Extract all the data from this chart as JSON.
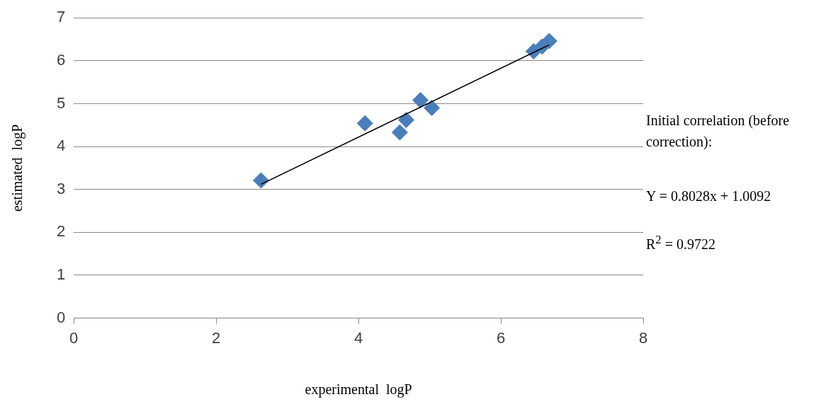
{
  "chart_data": {
    "type": "scatter",
    "xlabel": "experimental  logP",
    "ylabel": "estimated  logP",
    "annotations": [
      "Initial correlation (before correction):",
      "Y = 0.8028x + 1.0092",
      "R$^{2}$ = 0.9722"
    ],
    "series": [
      {
        "color": "#4a7ebb",
        "x": [
          2.63,
          4.09,
          4.58,
          4.67,
          4.87,
          5.03,
          6.46,
          6.58,
          6.68
        ],
        "values": [
          3.21,
          4.54,
          4.33,
          4.62,
          5.08,
          4.9,
          6.22,
          6.33,
          6.46
        ]
      },
      {
        "type": "line",
        "color": "#000000",
        "x": [
          2.63,
          6.68
        ],
        "values": [
          3.12,
          6.37
        ],
        "marker": "none"
      }
    ],
    "xlim": [
      0,
      8
    ],
    "xticks": [
      0,
      2,
      4,
      6,
      8
    ],
    "ylim": [
      0,
      7
    ],
    "yticks": [
      0,
      1,
      2,
      3,
      4,
      5,
      6,
      7
    ],
    "grid": "y",
    "legend": false,
    "marker": "diamond"
  }
}
